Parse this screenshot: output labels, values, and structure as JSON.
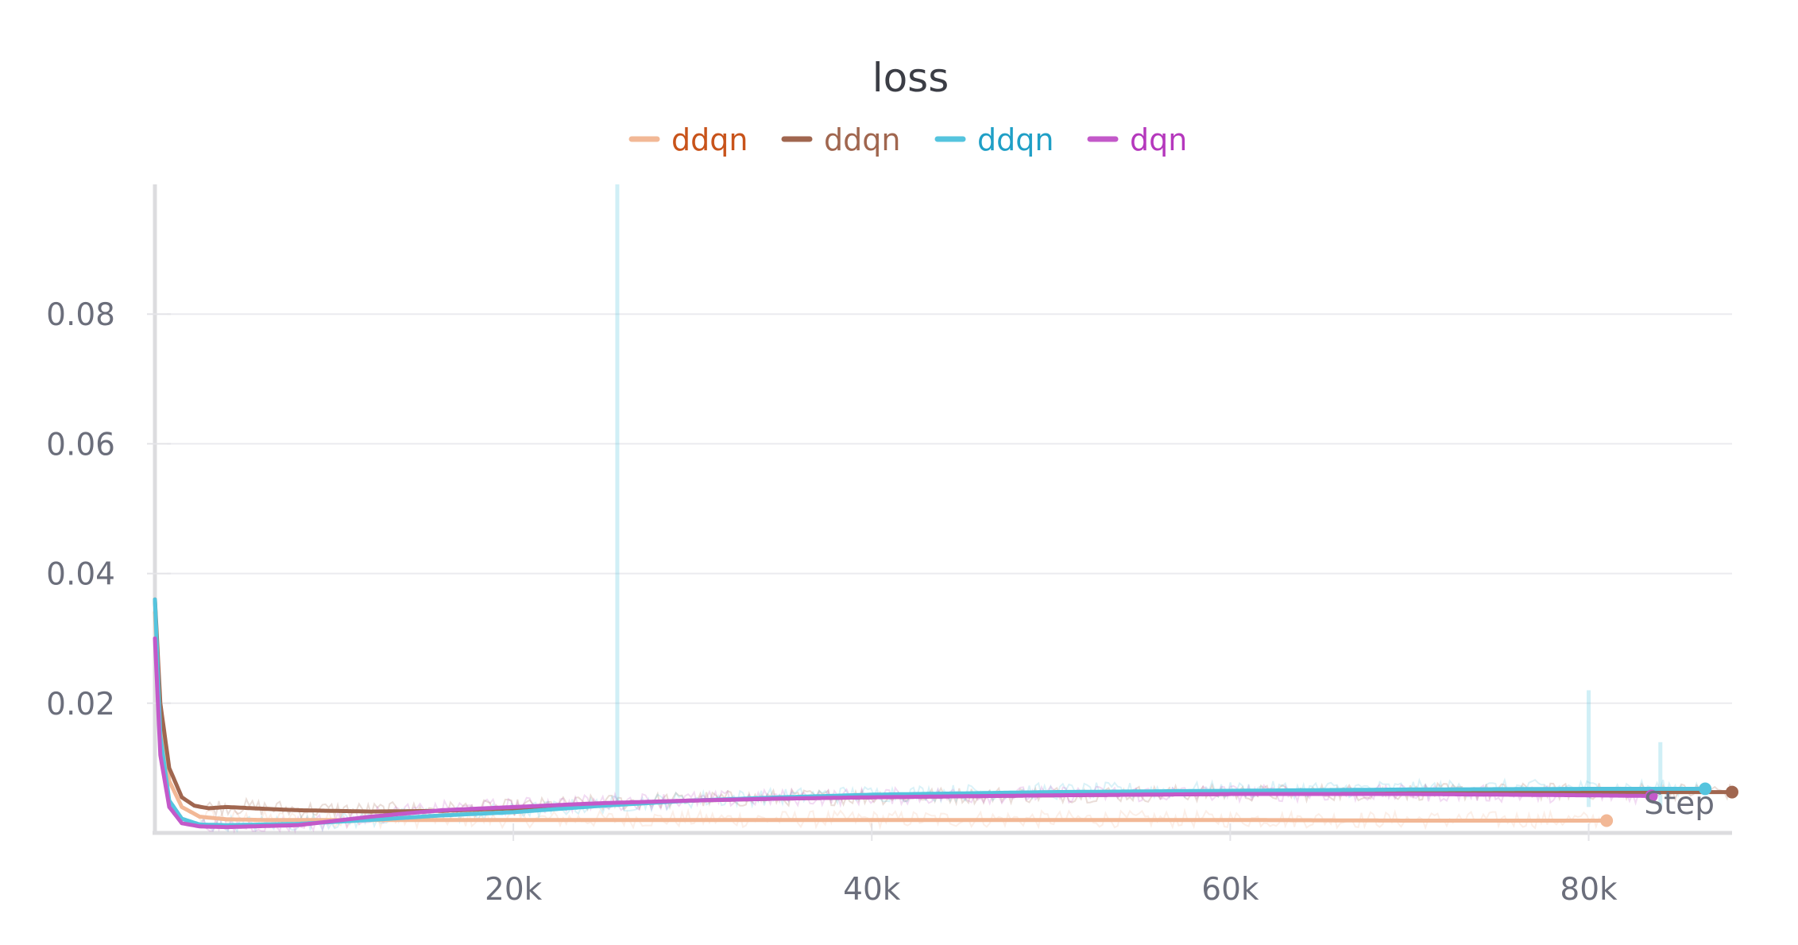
{
  "chart_data": {
    "type": "line",
    "title": "loss",
    "xlabel": "Step",
    "ylabel": "",
    "xlim": [
      0,
      88000
    ],
    "ylim": [
      0,
      0.1
    ],
    "x_ticks": [
      {
        "value": 20000,
        "label": "20k"
      },
      {
        "value": 40000,
        "label": "40k"
      },
      {
        "value": 60000,
        "label": "60k"
      },
      {
        "value": 80000,
        "label": "80k"
      }
    ],
    "y_ticks": [
      {
        "value": 0.02,
        "label": "0.02"
      },
      {
        "value": 0.04,
        "label": "0.04"
      },
      {
        "value": 0.06,
        "label": "0.06"
      },
      {
        "value": 0.08,
        "label": "0.08"
      }
    ],
    "grid": true,
    "legend_position": "top-center",
    "series": [
      {
        "name": "ddqn",
        "color": "#f2b896",
        "label_color": "#c8531a",
        "raw_spikes": [],
        "points": [
          [
            0,
            0.034
          ],
          [
            300,
            0.018
          ],
          [
            800,
            0.008
          ],
          [
            1500,
            0.004
          ],
          [
            2500,
            0.0025
          ],
          [
            4000,
            0.0021
          ],
          [
            6000,
            0.002
          ],
          [
            10000,
            0.002
          ],
          [
            20000,
            0.002
          ],
          [
            30000,
            0.002
          ],
          [
            40000,
            0.002
          ],
          [
            50000,
            0.002
          ],
          [
            60000,
            0.002
          ],
          [
            70000,
            0.0019
          ],
          [
            81000,
            0.0019
          ]
        ]
      },
      {
        "name": "ddqn",
        "color": "#a0664f",
        "label_color": "#a0664f",
        "raw_spikes": [],
        "points": [
          [
            0,
            0.036
          ],
          [
            300,
            0.02
          ],
          [
            800,
            0.01
          ],
          [
            1500,
            0.0055
          ],
          [
            2200,
            0.0042
          ],
          [
            3000,
            0.0038
          ],
          [
            4000,
            0.004
          ],
          [
            5500,
            0.0038
          ],
          [
            8000,
            0.0035
          ],
          [
            12000,
            0.0033
          ],
          [
            16000,
            0.0034
          ],
          [
            20000,
            0.0038
          ],
          [
            25000,
            0.0045
          ],
          [
            30000,
            0.005
          ],
          [
            35000,
            0.0053
          ],
          [
            40000,
            0.0055
          ],
          [
            50000,
            0.0058
          ],
          [
            60000,
            0.006
          ],
          [
            70000,
            0.0062
          ],
          [
            80000,
            0.0063
          ],
          [
            88000,
            0.0063
          ]
        ]
      },
      {
        "name": "ddqn",
        "color": "#55c4de",
        "label_color": "#1f9fc6",
        "raw_spikes": [
          [
            25800,
            0.1
          ],
          [
            80000,
            0.022
          ],
          [
            84000,
            0.014
          ]
        ],
        "points": [
          [
            0,
            0.036
          ],
          [
            300,
            0.015
          ],
          [
            800,
            0.005
          ],
          [
            1500,
            0.0022
          ],
          [
            2500,
            0.0013
          ],
          [
            4000,
            0.0012
          ],
          [
            8000,
            0.0014
          ],
          [
            12000,
            0.002
          ],
          [
            16000,
            0.0027
          ],
          [
            20000,
            0.0032
          ],
          [
            25000,
            0.0042
          ],
          [
            30000,
            0.005
          ],
          [
            35000,
            0.0055
          ],
          [
            40000,
            0.0059
          ],
          [
            50000,
            0.0063
          ],
          [
            60000,
            0.0065
          ],
          [
            70000,
            0.0067
          ],
          [
            80000,
            0.0068
          ],
          [
            86500,
            0.0068
          ]
        ]
      },
      {
        "name": "dqn",
        "color": "#c359c9",
        "label_color": "#b538bd",
        "raw_spikes": [],
        "points": [
          [
            0,
            0.03
          ],
          [
            300,
            0.012
          ],
          [
            800,
            0.004
          ],
          [
            1500,
            0.0015
          ],
          [
            2500,
            0.001
          ],
          [
            4000,
            0.0009
          ],
          [
            8000,
            0.0012
          ],
          [
            12000,
            0.0025
          ],
          [
            16000,
            0.0035
          ],
          [
            20000,
            0.004
          ],
          [
            25000,
            0.0046
          ],
          [
            30000,
            0.005
          ],
          [
            35000,
            0.0053
          ],
          [
            40000,
            0.0055
          ],
          [
            50000,
            0.0058
          ],
          [
            60000,
            0.006
          ],
          [
            70000,
            0.006
          ],
          [
            80000,
            0.0058
          ],
          [
            83500,
            0.0057
          ]
        ]
      }
    ]
  }
}
